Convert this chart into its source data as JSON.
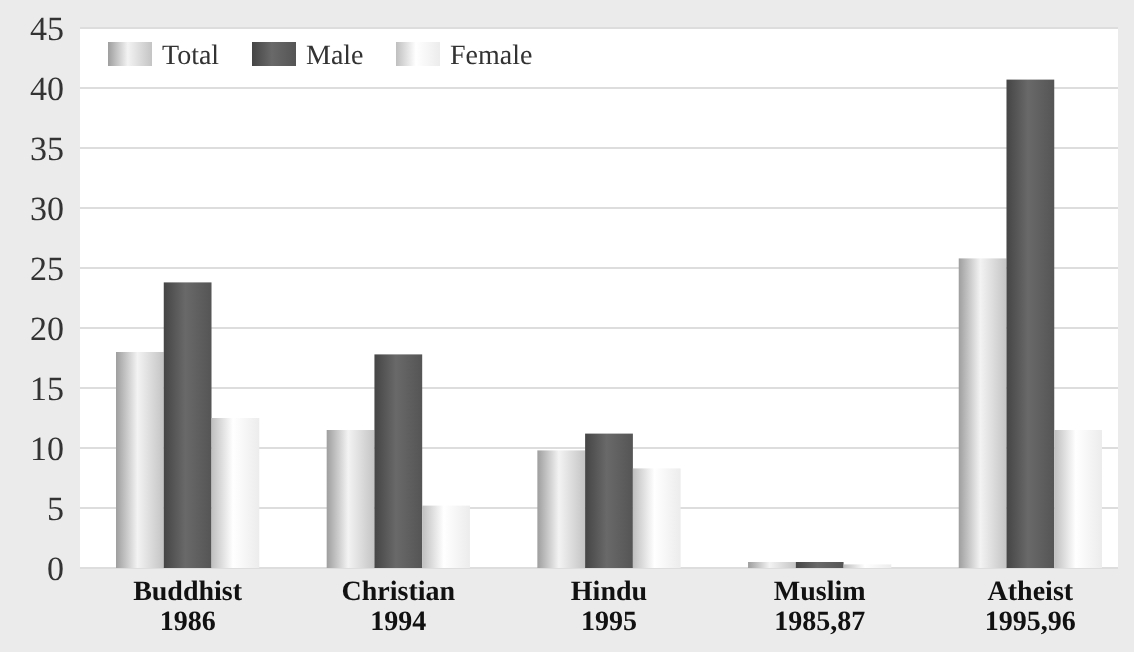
{
  "chart_data": {
    "type": "bar",
    "categories": [
      "Buddhist\n1986",
      "Christian\n1994",
      "Hindu\n1995",
      "Muslim\n1985,87",
      "Atheist\n1995,96"
    ],
    "series": [
      {
        "name": "Total",
        "color": "#c4c4c4",
        "values": [
          18,
          11.5,
          9.8,
          0.5,
          25.8
        ]
      },
      {
        "name": "Male",
        "color": "#555555",
        "values": [
          23.8,
          17.8,
          11.2,
          0.5,
          40.7
        ]
      },
      {
        "name": "Female",
        "color": "#ececec",
        "values": [
          12.5,
          5.2,
          8.3,
          0.3,
          11.5
        ]
      }
    ],
    "ylim": [
      0,
      45
    ],
    "yticks": [
      0,
      5,
      10,
      15,
      20,
      25,
      30,
      35,
      40,
      45
    ],
    "grid": "y",
    "legend": "top left"
  }
}
